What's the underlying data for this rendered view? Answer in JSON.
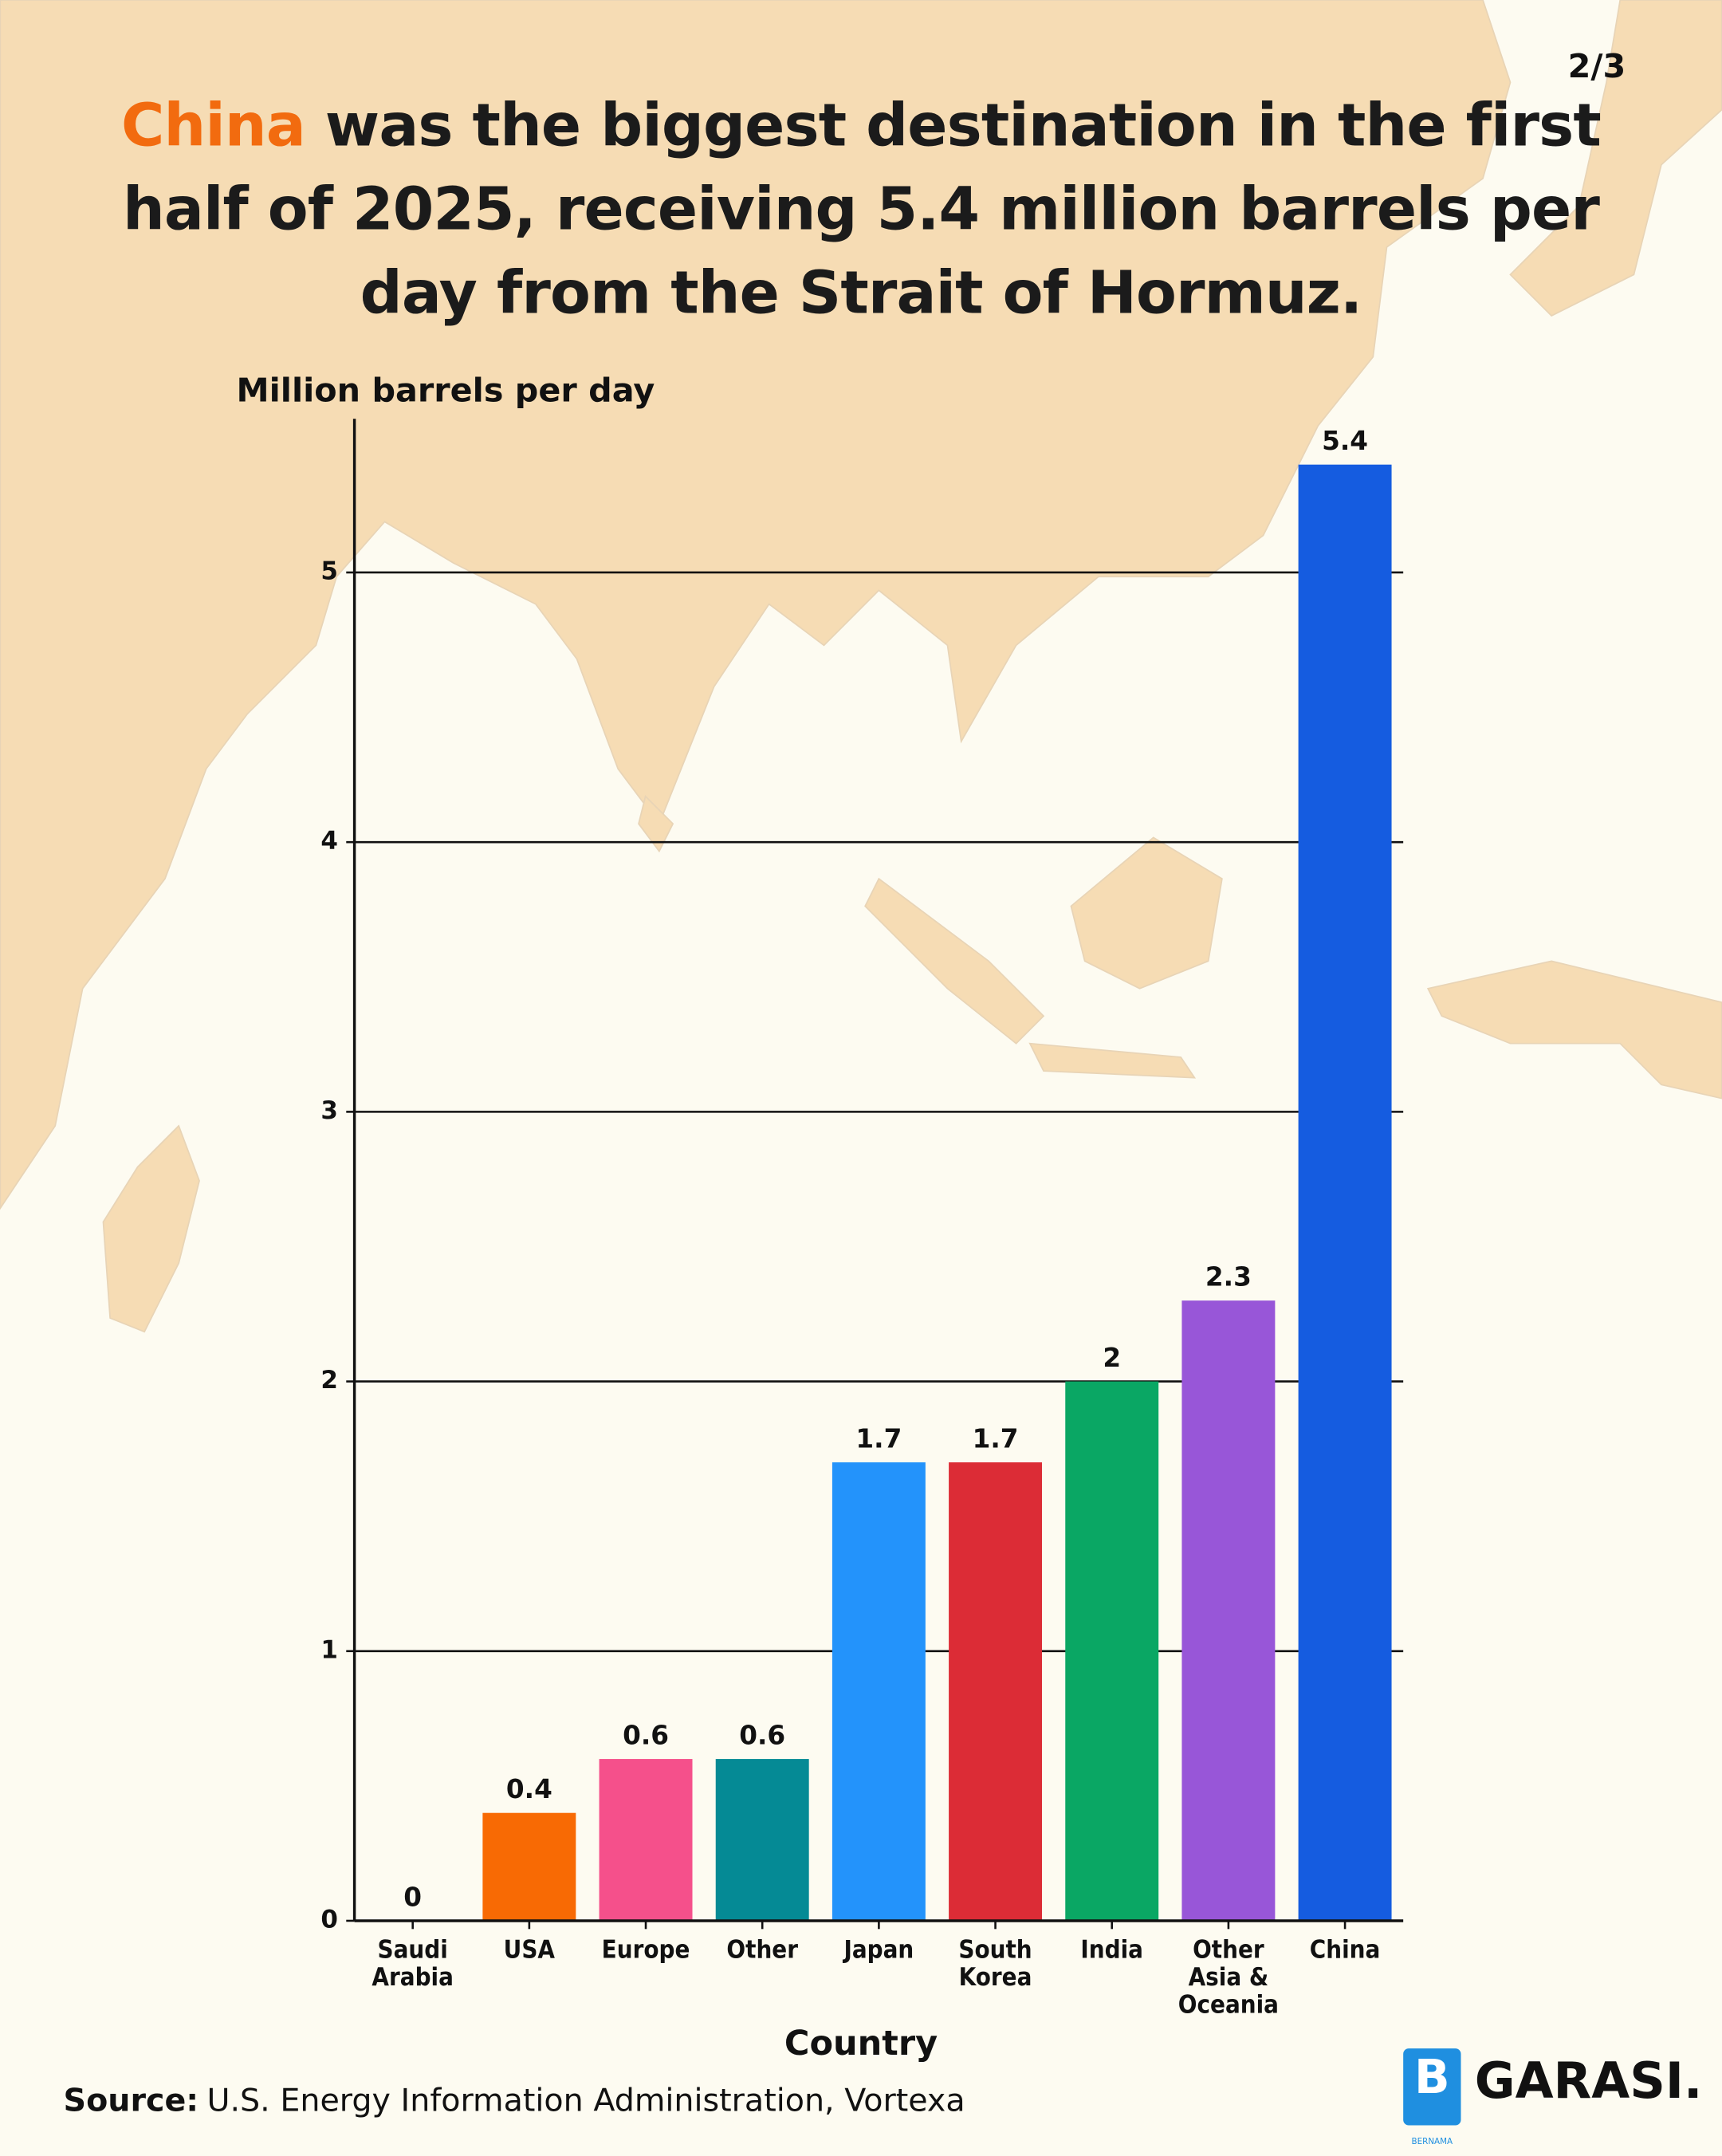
{
  "chart_data": {
    "type": "bar",
    "title": [
      "China",
      " was the biggest destination in the first half of 2025, receiving 5.4 million barrels per day from the Strait of Hormuz."
    ],
    "title_highlight_color": "#f26b0f",
    "page_indicator": "2/3",
    "y_axis_label": "Million barrels per day",
    "x_axis_label": "Country",
    "categories": [
      "Saudi Arabia",
      "USA",
      "Europe",
      "Other",
      "Japan",
      "South Korea",
      "India",
      "Other Asia & Oceania",
      "China"
    ],
    "values": [
      0,
      0.4,
      0.6,
      0.6,
      1.7,
      1.7,
      2,
      2.3,
      5.4
    ],
    "colors": [
      "#888888",
      "#f86a04",
      "#f5508b",
      "#058a95",
      "#2393fb",
      "#dc2c36",
      "#0aa764",
      "#9856d8",
      "#155ce0"
    ],
    "ylim": [
      0,
      5.57
    ],
    "yticks": [
      0,
      1,
      2,
      3,
      4,
      5
    ],
    "grid": true,
    "source_label": "Source:",
    "source": "U.S. Energy Information Administration, Vortexa",
    "brand": "GARASI.",
    "brand_sub": "BERNAMA"
  }
}
